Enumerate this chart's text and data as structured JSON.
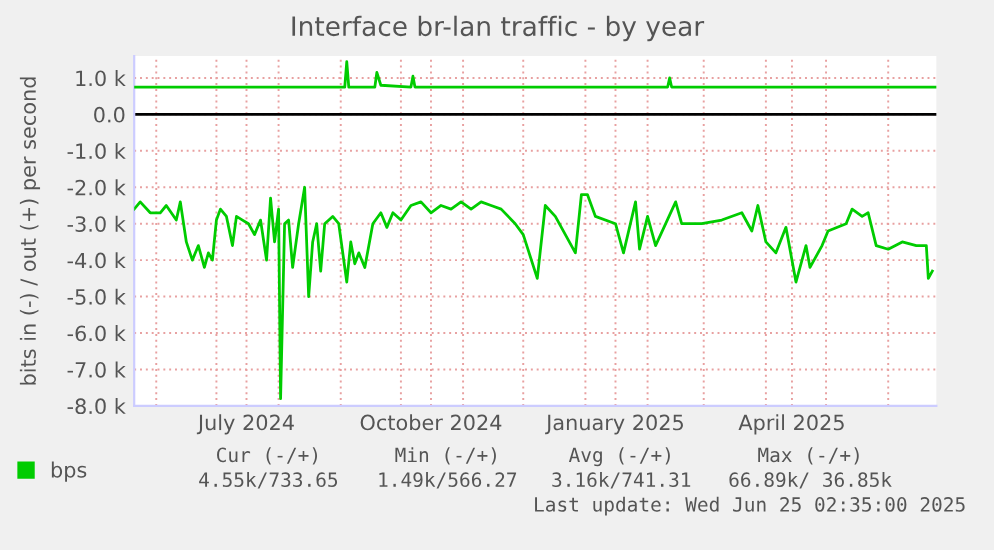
{
  "chart_data": {
    "type": "line",
    "title": "Interface br-lan traffic - by year",
    "ylabel": "bits in (-) / out (+) per second",
    "xlim": [
      "2024-05-21",
      "2025-06-25"
    ],
    "ylim": [
      -8000,
      1600
    ],
    "xticks": [
      {
        "value": "2024-06-01",
        "label": null
      },
      {
        "value": "2024-07-01",
        "label": null
      },
      {
        "value": "2024-07-16",
        "label": "July 2024"
      },
      {
        "value": "2024-08-01",
        "label": null
      },
      {
        "value": "2024-09-01",
        "label": null
      },
      {
        "value": "2024-10-01",
        "label": null
      },
      {
        "value": "2024-10-16",
        "label": "October 2024"
      },
      {
        "value": "2024-11-01",
        "label": null
      },
      {
        "value": "2024-12-01",
        "label": null
      },
      {
        "value": "2025-01-01",
        "label": null
      },
      {
        "value": "2025-01-16",
        "label": "January 2025"
      },
      {
        "value": "2025-02-01",
        "label": null
      },
      {
        "value": "2025-03-01",
        "label": null
      },
      {
        "value": "2025-04-01",
        "label": null
      },
      {
        "value": "2025-04-14",
        "label": "April 2025"
      },
      {
        "value": "2025-05-01",
        "label": null
      },
      {
        "value": "2025-06-01",
        "label": null
      }
    ],
    "yticks": [
      {
        "value": 1000,
        "label": "1.0 k"
      },
      {
        "value": 0,
        "label": "0.0"
      },
      {
        "value": -1000,
        "label": "-1.0 k"
      },
      {
        "value": -2000,
        "label": "-2.0 k"
      },
      {
        "value": -3000,
        "label": "-3.0 k"
      },
      {
        "value": -4000,
        "label": "-4.0 k"
      },
      {
        "value": -5000,
        "label": "-5.0 k"
      },
      {
        "value": -6000,
        "label": "-6.0 k"
      },
      {
        "value": -7000,
        "label": "-7.0 k"
      },
      {
        "value": -8000,
        "label": "-8.0 k"
      }
    ],
    "grid": true,
    "legend": "bottom",
    "marker": "none",
    "line_style": "solid",
    "ref_lines": [
      {
        "axis": "y",
        "value": 0,
        "label": null,
        "color": "#000000"
      }
    ],
    "series": [
      {
        "name": "bps",
        "color": "#00cc00",
        "x": [
          "2024-05-21",
          "2024-05-24",
          "2024-05-29",
          "2024-06-03",
          "2024-06-06",
          "2024-06-11",
          "2024-06-13",
          "2024-06-16",
          "2024-06-19",
          "2024-06-22",
          "2024-06-25",
          "2024-06-27",
          "2024-06-29",
          "2024-07-01",
          "2024-07-03",
          "2024-07-06",
          "2024-07-09",
          "2024-07-11",
          "2024-07-14",
          "2024-07-17",
          "2024-07-20",
          "2024-07-23",
          "2024-07-26",
          "2024-07-28",
          "2024-07-30",
          "2024-08-01",
          "2024-08-02",
          "2024-08-04",
          "2024-08-06",
          "2024-08-08",
          "2024-08-11",
          "2024-08-14",
          "2024-08-16",
          "2024-08-18",
          "2024-08-20",
          "2024-08-22",
          "2024-08-24",
          "2024-08-28",
          "2024-08-31",
          "2024-09-04",
          "2024-09-06",
          "2024-09-08",
          "2024-09-10",
          "2024-09-13",
          "2024-09-17",
          "2024-09-21",
          "2024-09-24",
          "2024-09-27",
          "2024-10-01",
          "2024-10-06",
          "2024-10-11",
          "2024-10-16",
          "2024-10-21",
          "2024-10-26",
          "2024-10-31",
          "2024-11-05",
          "2024-11-10",
          "2024-11-15",
          "2024-11-20",
          "2024-11-27",
          "2024-12-01",
          "2024-12-08",
          "2024-12-12",
          "2024-12-17",
          "2024-12-27",
          "2024-12-30",
          "2025-01-02",
          "2025-01-06",
          "2025-01-16",
          "2025-01-20",
          "2025-01-26",
          "2025-01-28",
          "2025-02-01",
          "2025-02-05",
          "2025-02-15",
          "2025-02-18",
          "2025-02-28",
          "2025-03-10",
          "2025-03-20",
          "2025-03-25",
          "2025-03-28",
          "2025-04-01",
          "2025-04-06",
          "2025-04-11",
          "2025-04-16",
          "2025-04-21",
          "2025-04-23",
          "2025-04-29",
          "2025-05-02",
          "2025-05-11",
          "2025-05-14",
          "2025-05-19",
          "2025-05-22",
          "2025-05-26",
          "2025-06-01",
          "2025-06-08",
          "2025-06-15",
          "2025-06-20",
          "2025-06-21",
          "2025-06-23"
        ],
        "values": [
          -2600,
          -2400,
          -2700,
          -2700,
          -2500,
          -2900,
          -2400,
          -3500,
          -4000,
          -3600,
          -4200,
          -3800,
          -4000,
          -2900,
          -2600,
          -2800,
          -3600,
          -2800,
          -2900,
          -3000,
          -3300,
          -2900,
          -4000,
          -2300,
          -3500,
          -2600,
          -7800,
          -3000,
          -2900,
          -4200,
          -3000,
          -2000,
          -5000,
          -3500,
          -3000,
          -4300,
          -3000,
          -2800,
          -3000,
          -4600,
          -3500,
          -4100,
          -3800,
          -4200,
          -3000,
          -2700,
          -3100,
          -2700,
          -2900,
          -2500,
          -2400,
          -2700,
          -2500,
          -2600,
          -2400,
          -2600,
          -2400,
          -2500,
          -2600,
          -3000,
          -3300,
          -4500,
          -2500,
          -2800,
          -3800,
          -2200,
          -2200,
          -2800,
          -3000,
          -3800,
          -2400,
          -3700,
          -2800,
          -3600,
          -2400,
          -3000,
          -3000,
          -2900,
          -2700,
          -3200,
          -2500,
          -3500,
          -3800,
          -3100,
          -4600,
          -3600,
          -4200,
          -3600,
          -3200,
          -3000,
          -2600,
          -2800,
          -2700,
          -3600,
          -3700,
          -3500,
          -3600,
          -3600,
          -4500,
          -4300
        ]
      },
      {
        "color": "#00cc00",
        "x": [
          "2024-05-21",
          "2024-09-03",
          "2024-09-04",
          "2024-09-05",
          "2024-09-18",
          "2024-09-19",
          "2024-09-21",
          "2024-10-06",
          "2024-10-07",
          "2024-10-08",
          "2025-02-11",
          "2025-02-12",
          "2025-02-13",
          "2025-06-25"
        ],
        "values": [
          750,
          750,
          1450,
          750,
          750,
          1150,
          800,
          750,
          1050,
          750,
          750,
          1000,
          750,
          750
        ]
      }
    ],
    "annotations": [
      "Cur (-/+)",
      "Min (-/+)",
      "Avg (-/+)",
      "Max (-/+)",
      "4.55k/733.65",
      "1.49k/566.27",
      "3.16k/741.31",
      "66.89k/ 36.85k",
      "Last update: Wed Jun 25 02:35:00 2025"
    ]
  }
}
